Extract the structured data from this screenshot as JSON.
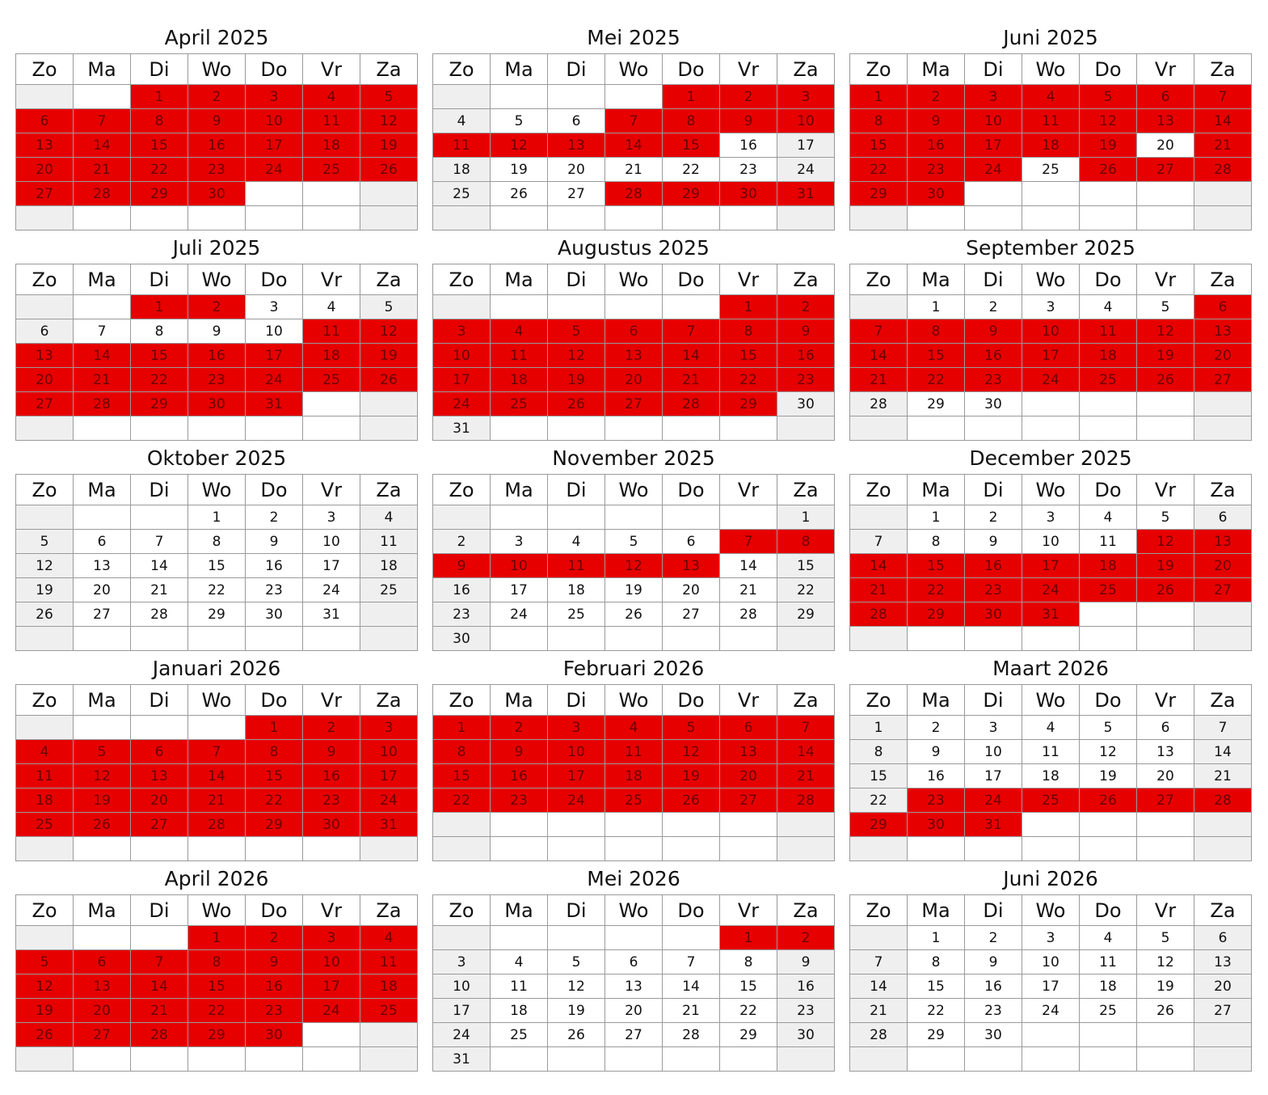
{
  "weekdays": [
    "Zo",
    "Ma",
    "Di",
    "Wo",
    "Do",
    "Vr",
    "Za"
  ],
  "colors": {
    "booked": "#e60000",
    "booked_text": "#6b0000",
    "weekend": "#efefef",
    "free": "#ffffff",
    "grid": "#9a9a9a"
  },
  "months": [
    {
      "title": "April 2025",
      "year": 2025,
      "month": 4,
      "booked": [
        [
          1,
          30
        ]
      ]
    },
    {
      "title": "Mei 2025",
      "year": 2025,
      "month": 5,
      "booked": [
        [
          1,
          3
        ],
        [
          7,
          15
        ],
        [
          28,
          31
        ]
      ]
    },
    {
      "title": "Juni 2025",
      "year": 2025,
      "month": 6,
      "booked": [
        [
          1,
          19
        ],
        [
          21,
          24
        ],
        [
          26,
          30
        ]
      ]
    },
    {
      "title": "Juli 2025",
      "year": 2025,
      "month": 7,
      "booked": [
        [
          1,
          2
        ],
        [
          11,
          31
        ]
      ]
    },
    {
      "title": "Augustus 2025",
      "year": 2025,
      "month": 8,
      "booked": [
        [
          1,
          29
        ]
      ]
    },
    {
      "title": "September 2025",
      "year": 2025,
      "month": 9,
      "booked": [
        [
          6,
          27
        ]
      ]
    },
    {
      "title": "Oktober 2025",
      "year": 2025,
      "month": 10,
      "booked": []
    },
    {
      "title": "November 2025",
      "year": 2025,
      "month": 11,
      "booked": [
        [
          7,
          13
        ]
      ]
    },
    {
      "title": "December 2025",
      "year": 2025,
      "month": 12,
      "booked": [
        [
          12,
          31
        ]
      ]
    },
    {
      "title": "Januari 2026",
      "year": 2026,
      "month": 1,
      "booked": [
        [
          1,
          31
        ]
      ]
    },
    {
      "title": "Februari 2026",
      "year": 2026,
      "month": 2,
      "booked": [
        [
          1,
          28
        ]
      ]
    },
    {
      "title": "Maart 2026",
      "year": 2026,
      "month": 3,
      "booked": [
        [
          23,
          31
        ]
      ]
    },
    {
      "title": "April 2026",
      "year": 2026,
      "month": 4,
      "booked": [
        [
          1,
          30
        ]
      ]
    },
    {
      "title": "Mei 2026",
      "year": 2026,
      "month": 5,
      "booked": [
        [
          1,
          2
        ]
      ]
    },
    {
      "title": "Juni 2026",
      "year": 2026,
      "month": 6,
      "booked": []
    }
  ]
}
